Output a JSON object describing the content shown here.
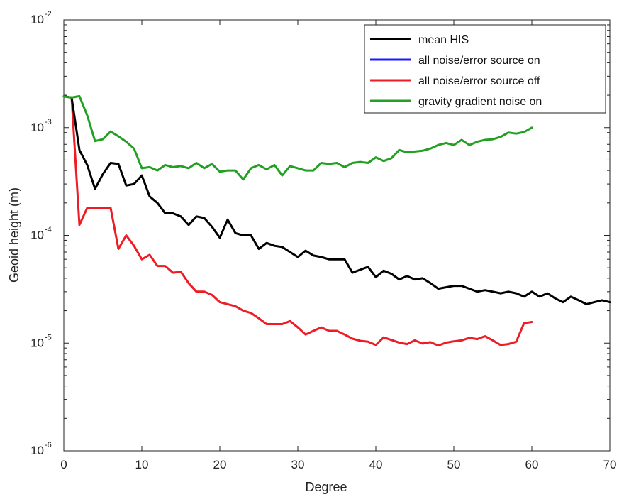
{
  "chart_data": {
    "type": "line",
    "title": "",
    "xlabel": "Degree",
    "ylabel": "Geoid height (m)",
    "xlim": [
      0,
      70
    ],
    "ylim": [
      1e-06,
      0.01
    ],
    "yscale": "log",
    "grid": false,
    "legend_position": "top-right",
    "x_ticks": [
      0,
      10,
      20,
      30,
      40,
      50,
      60,
      70
    ],
    "y_ticks": [
      {
        "value": 1e-06,
        "base": "10",
        "exp": "-6"
      },
      {
        "value": 1e-05,
        "base": "10",
        "exp": "-5"
      },
      {
        "value": 0.0001,
        "base": "10",
        "exp": "-4"
      },
      {
        "value": 0.001,
        "base": "10",
        "exp": "-3"
      },
      {
        "value": 0.01,
        "base": "10",
        "exp": "-2"
      }
    ],
    "series": [
      {
        "name": "mean HIS",
        "color": "#000000",
        "x": [
          0,
          1,
          2,
          3,
          4,
          5,
          6,
          7,
          8,
          9,
          10,
          11,
          12,
          13,
          14,
          15,
          16,
          17,
          18,
          19,
          20,
          21,
          22,
          23,
          24,
          25,
          26,
          27,
          28,
          29,
          30,
          31,
          32,
          33,
          34,
          35,
          36,
          37,
          38,
          39,
          40,
          41,
          42,
          43,
          44,
          45,
          46,
          47,
          48,
          49,
          50,
          51,
          52,
          53,
          54,
          55,
          56,
          57,
          58,
          59,
          60,
          61,
          62,
          63,
          64,
          65,
          66,
          67,
          68,
          69,
          70
        ],
        "y": [
          0.00195,
          0.0019,
          0.00062,
          0.00045,
          0.00027,
          0.00037,
          0.00047,
          0.00046,
          0.00029,
          0.0003,
          0.00036,
          0.00023,
          0.0002,
          0.00016,
          0.00016,
          0.00015,
          0.000125,
          0.00015,
          0.000145,
          0.00012,
          9.5e-05,
          0.00014,
          0.000105,
          0.0001,
          0.0001,
          7.5e-05,
          8.5e-05,
          8e-05,
          7.8e-05,
          7e-05,
          6.3e-05,
          7.2e-05,
          6.5e-05,
          6.3e-05,
          6e-05,
          6e-05,
          6e-05,
          4.5e-05,
          4.8e-05,
          5.1e-05,
          4.1e-05,
          4.7e-05,
          4.4e-05,
          3.9e-05,
          4.2e-05,
          3.9e-05,
          4e-05,
          3.6e-05,
          3.2e-05,
          3.3e-05,
          3.4e-05,
          3.4e-05,
          3.2e-05,
          3e-05,
          3.1e-05,
          3e-05,
          2.9e-05,
          3e-05,
          2.9e-05,
          2.7e-05,
          3e-05,
          2.7e-05,
          2.9e-05,
          2.6e-05,
          2.4e-05,
          2.7e-05,
          2.5e-05,
          2.3e-05,
          2.4e-05,
          2.5e-05,
          2.4e-05
        ]
      },
      {
        "name": "all noise/error source on",
        "color": "#1a1aff",
        "x": [],
        "y": []
      },
      {
        "name": "all noise/error source off",
        "color": "#ee1c24",
        "x": [
          0,
          1,
          2,
          3,
          4,
          5,
          6,
          7,
          8,
          9,
          10,
          11,
          12,
          13,
          14,
          15,
          16,
          17,
          18,
          19,
          20,
          21,
          22,
          23,
          24,
          25,
          26,
          27,
          28,
          29,
          30,
          31,
          32,
          33,
          34,
          35,
          36,
          37,
          38,
          39,
          40,
          41,
          42,
          43,
          44,
          45,
          46,
          47,
          48,
          49,
          50,
          51,
          52,
          53,
          54,
          55,
          56,
          57,
          58,
          59,
          60
        ],
        "y": [
          0.00195,
          0.0019,
          0.000125,
          0.00018,
          0.00018,
          0.00018,
          0.00018,
          7.5e-05,
          0.0001,
          8e-05,
          6e-05,
          6.6e-05,
          5.2e-05,
          5.2e-05,
          4.5e-05,
          4.6e-05,
          3.6e-05,
          3e-05,
          3e-05,
          2.8e-05,
          2.4e-05,
          2.3e-05,
          2.2e-05,
          2e-05,
          1.9e-05,
          1.7e-05,
          1.5e-05,
          1.5e-05,
          1.5e-05,
          1.6e-05,
          1.4e-05,
          1.2e-05,
          1.3e-05,
          1.4e-05,
          1.3e-05,
          1.3e-05,
          1.2e-05,
          1.1e-05,
          1.05e-05,
          1.03e-05,
          9.6e-06,
          1.13e-05,
          1.07e-05,
          1.01e-05,
          9.8e-06,
          1.06e-05,
          9.9e-06,
          1.02e-05,
          9.5e-06,
          1.01e-05,
          1.04e-05,
          1.06e-05,
          1.12e-05,
          1.09e-05,
          1.16e-05,
          1.06e-05,
          9.6e-06,
          9.8e-06,
          1.03e-05,
          1.53e-05,
          1.57e-05
        ]
      },
      {
        "name": "gravity gradient noise on",
        "color": "#22a022",
        "x": [
          0,
          1,
          2,
          3,
          4,
          5,
          6,
          7,
          8,
          9,
          10,
          11,
          12,
          13,
          14,
          15,
          16,
          17,
          18,
          19,
          20,
          21,
          22,
          23,
          24,
          25,
          26,
          27,
          28,
          29,
          30,
          31,
          32,
          33,
          34,
          35,
          36,
          37,
          38,
          39,
          40,
          41,
          42,
          43,
          44,
          45,
          46,
          47,
          48,
          49,
          50,
          51,
          52,
          53,
          54,
          55,
          56,
          57,
          58,
          59,
          60
        ],
        "y": [
          0.00195,
          0.0019,
          0.00196,
          0.0013,
          0.00075,
          0.00078,
          0.00092,
          0.00083,
          0.00074,
          0.00064,
          0.00042,
          0.00043,
          0.0004,
          0.00045,
          0.00043,
          0.00044,
          0.00042,
          0.00047,
          0.00042,
          0.00046,
          0.00039,
          0.0004,
          0.0004,
          0.00033,
          0.00042,
          0.00045,
          0.00041,
          0.00045,
          0.00036,
          0.00044,
          0.00042,
          0.0004,
          0.0004,
          0.00047,
          0.00046,
          0.00047,
          0.00043,
          0.00047,
          0.00048,
          0.00047,
          0.00053,
          0.00049,
          0.00052,
          0.00062,
          0.00059,
          0.0006,
          0.00061,
          0.00064,
          0.00069,
          0.00072,
          0.00069,
          0.00077,
          0.00069,
          0.00074,
          0.00077,
          0.00078,
          0.00082,
          0.0009,
          0.00088,
          0.00091,
          0.001
        ]
      }
    ]
  }
}
